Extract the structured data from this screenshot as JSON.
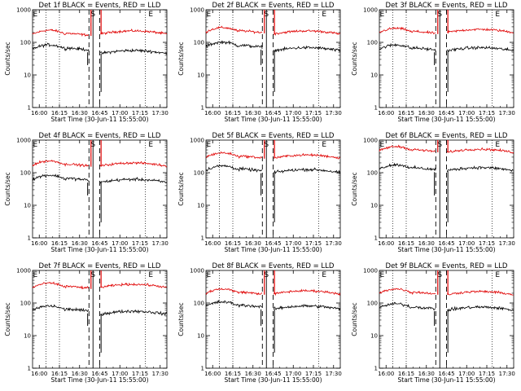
{
  "chart_data": [
    {
      "type": "line",
      "title": "Det 1f BLACK = Events, RED = LLD",
      "xlabel": "Start Time (30-Jun-11 15:55:00)",
      "ylabel": "Counts/sec",
      "yscale": "log",
      "ylim": [
        1,
        1000
      ],
      "xlim": [
        -5,
        95
      ],
      "xticks": [
        "16:00",
        "16:15",
        "16:30",
        "16:45",
        "17:00",
        "17:15",
        "17:30"
      ],
      "yticks": [
        "1",
        "10",
        "100",
        "1000"
      ],
      "markers": [
        "E",
        "S",
        "E"
      ],
      "events_level": 62,
      "lld_level": 175,
      "events_mid": 45,
      "lld_mid": 180
    },
    {
      "type": "line",
      "title": "Det 2f BLACK = Events, RED = LLD",
      "xlabel": "Start Time (30-Jun-11 15:55:00)",
      "ylabel": "Counts/sec",
      "yscale": "log",
      "ylim": [
        1,
        1000
      ],
      "xlim": [
        -5,
        95
      ],
      "xticks": [
        "16:00",
        "16:15",
        "16:30",
        "16:45",
        "17:00",
        "17:15",
        "17:30"
      ],
      "yticks": [
        "1",
        "10",
        "100",
        "1000"
      ],
      "markers": [
        "E",
        "S",
        "E"
      ],
      "events_level": 75,
      "lld_level": 210,
      "events_mid": 55,
      "lld_mid": 180
    },
    {
      "type": "line",
      "title": "Det 3f BLACK = Events, RED = LLD",
      "xlabel": "Start Time (30-Jun-11 15:55:00)",
      "ylabel": "Counts/sec",
      "yscale": "log",
      "ylim": [
        1,
        1000
      ],
      "xlim": [
        -5,
        95
      ],
      "xticks": [
        "16:00",
        "16:15",
        "16:30",
        "16:45",
        "17:00",
        "17:15",
        "17:30"
      ],
      "yticks": [
        "1",
        "10",
        "100",
        "1000"
      ],
      "markers": [
        "E",
        "S",
        "E"
      ],
      "events_level": 62,
      "lld_level": 200,
      "events_mid": 55,
      "lld_mid": 200
    },
    {
      "type": "line",
      "title": "Det 4f BLACK = Events, RED = LLD",
      "xlabel": "Start Time (30-Jun-11 15:55:00)",
      "ylabel": "Counts/sec",
      "yscale": "log",
      "ylim": [
        1,
        1000
      ],
      "xlim": [
        -5,
        95
      ],
      "xticks": [
        "16:00",
        "16:15",
        "16:30",
        "16:45",
        "17:00",
        "17:15",
        "17:30"
      ],
      "yticks": [
        "1",
        "10",
        "100",
        "1000"
      ],
      "markers": [
        "E",
        "S",
        "E"
      ],
      "events_level": 62,
      "lld_level": 170,
      "events_mid": 50,
      "lld_mid": 160
    },
    {
      "type": "line",
      "title": "Det 5f BLACK = Events, RED = LLD",
      "xlabel": "Start Time (30-Jun-11 15:55:00)",
      "ylabel": "Counts/sec",
      "yscale": "log",
      "ylim": [
        1,
        1000
      ],
      "xlim": [
        -5,
        95
      ],
      "xticks": [
        "16:00",
        "16:15",
        "16:30",
        "16:45",
        "17:00",
        "17:15",
        "17:30"
      ],
      "yticks": [
        "1",
        "10",
        "100",
        "1000"
      ],
      "markers": [
        "E",
        "S",
        "E"
      ],
      "events_level": 120,
      "lld_level": 300,
      "events_mid": 100,
      "lld_mid": 280
    },
    {
      "type": "line",
      "title": "Det 6f BLACK = Events, RED = LLD",
      "xlabel": "Start Time (30-Jun-11 15:55:00)",
      "ylabel": "Counts/sec",
      "yscale": "log",
      "ylim": [
        1,
        1000
      ],
      "xlim": [
        -5,
        95
      ],
      "xticks": [
        "16:00",
        "16:15",
        "16:30",
        "16:45",
        "17:00",
        "17:15",
        "17:30"
      ],
      "yticks": [
        "1",
        "10",
        "100",
        "1000"
      ],
      "markers": [
        "E",
        "S",
        "E"
      ],
      "events_level": 130,
      "lld_level": 470,
      "events_mid": 115,
      "lld_mid": 420
    },
    {
      "type": "line",
      "title": "Det 7f BLACK = Events, RED = LLD",
      "xlabel": "Start Time (30-Jun-11 15:55:00)",
      "ylabel": "Counts/sec",
      "yscale": "log",
      "ylim": [
        1,
        1000
      ],
      "xlim": [
        -5,
        95
      ],
      "xticks": [
        "16:00",
        "16:15",
        "16:30",
        "16:45",
        "17:00",
        "17:15",
        "17:30"
      ],
      "yticks": [
        "1",
        "10",
        "100",
        "1000"
      ],
      "markers": [
        "E",
        "S",
        "E"
      ],
      "events_level": 60,
      "lld_level": 300,
      "events_mid": 45,
      "lld_mid": 300
    },
    {
      "type": "line",
      "title": "Det 8f BLACK = Events, RED = LLD",
      "xlabel": "Start Time (30-Jun-11 15:55:00)",
      "ylabel": "Counts/sec",
      "yscale": "log",
      "ylim": [
        1,
        1000
      ],
      "xlim": [
        -5,
        95
      ],
      "xticks": [
        "16:00",
        "16:15",
        "16:30",
        "16:45",
        "17:00",
        "17:15",
        "17:30"
      ],
      "yticks": [
        "1",
        "10",
        "100",
        "1000"
      ],
      "markers": [
        "E",
        "S",
        "E"
      ],
      "events_level": 80,
      "lld_level": 200,
      "events_mid": 65,
      "lld_mid": 190
    },
    {
      "type": "line",
      "title": "Det 9f BLACK = Events, RED = LLD",
      "xlabel": "Start Time (30-Jun-11 15:55:00)",
      "ylabel": "Counts/sec",
      "yscale": "log",
      "ylim": [
        1,
        1000
      ],
      "xlim": [
        -5,
        95
      ],
      "xticks": [
        "16:00",
        "16:15",
        "16:30",
        "16:45",
        "17:00",
        "17:15",
        "17:30"
      ],
      "yticks": [
        "1",
        "10",
        "100",
        "1000"
      ],
      "markers": [
        "E",
        "S",
        "E"
      ],
      "events_level": 70,
      "lld_level": 200,
      "events_mid": 60,
      "lld_mid": 180
    }
  ],
  "colors": {
    "events": "#000000",
    "lld": "#e00000",
    "axis": "#000000",
    "background": "#ffffff"
  }
}
